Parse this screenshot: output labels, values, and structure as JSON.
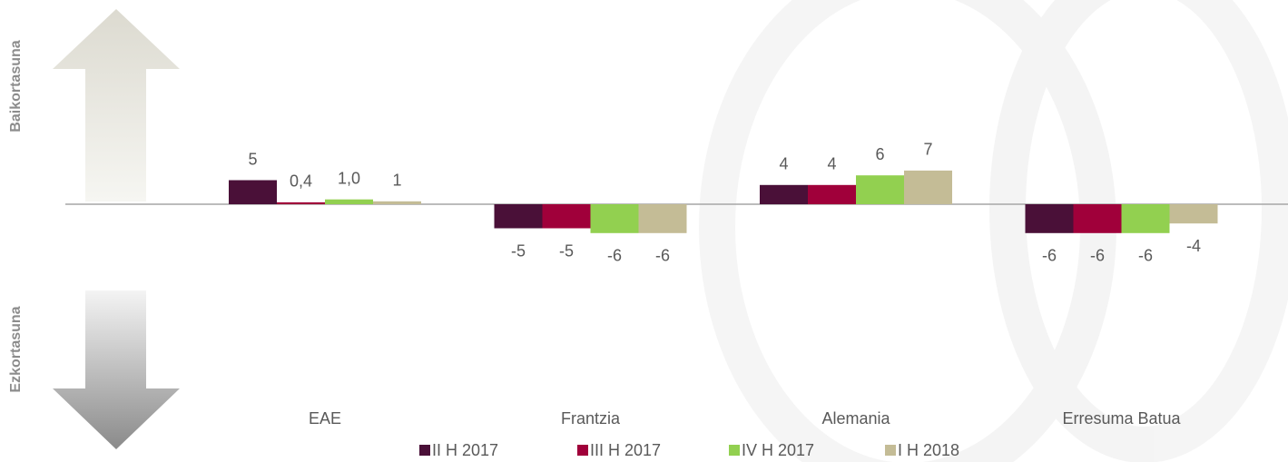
{
  "chart_data": {
    "type": "bar",
    "categories": [
      "EAE",
      "Frantzia",
      "Alemania",
      "Erresuma Batua"
    ],
    "series": [
      {
        "name": "II H 2017",
        "color": "#4a1038",
        "values": [
          5,
          -5,
          4,
          -6
        ],
        "value_labels": [
          "5",
          "-5",
          "4",
          "-6"
        ]
      },
      {
        "name": "III H 2017",
        "color": "#a0003a",
        "values": [
          0.4,
          -5,
          4,
          -6
        ],
        "value_labels": [
          "0,4",
          "-5",
          "4",
          "-6"
        ]
      },
      {
        "name": "IV H 2017",
        "color": "#92d050",
        "values": [
          1.0,
          -6,
          6,
          -6
        ],
        "value_labels": [
          "1,0",
          "-6",
          "6",
          "-6"
        ]
      },
      {
        "name": "I H 2018",
        "color": "#c4bc96",
        "values": [
          0.6,
          -6,
          7,
          -4
        ],
        "value_labels": [
          "1",
          "-6",
          "7",
          "-4"
        ]
      }
    ],
    "annotations": [
      "Baikortasuna",
      "Ezkortasuna"
    ],
    "legend": "bottom"
  }
}
